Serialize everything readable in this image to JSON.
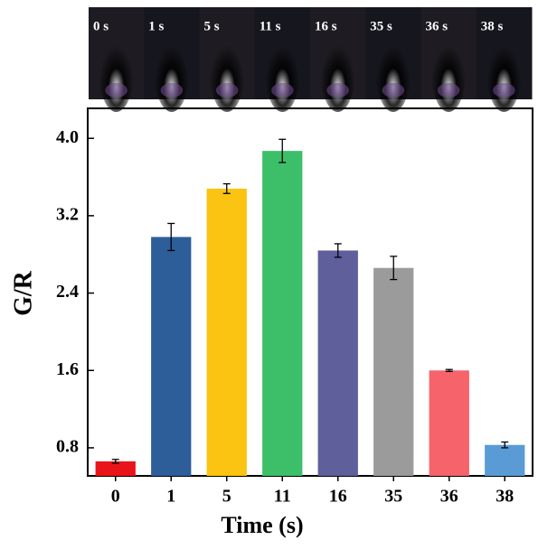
{
  "photo_strip": {
    "labels": [
      "0 s",
      "1 s",
      "5 s",
      "11 s",
      "16 s",
      "35 s",
      "36 s",
      "38 s"
    ]
  },
  "chart_data": {
    "type": "bar",
    "x_label": "Time (s)",
    "y_label": "G/R",
    "categories": [
      "0",
      "1",
      "5",
      "11",
      "16",
      "35",
      "36",
      "38"
    ],
    "values": [
      0.66,
      2.98,
      3.48,
      3.87,
      2.84,
      2.66,
      1.6,
      0.83
    ],
    "errors": [
      0.02,
      0.14,
      0.05,
      0.12,
      0.07,
      0.12,
      0.01,
      0.03
    ],
    "colors": [
      "#e8141a",
      "#2e5e9a",
      "#fbc312",
      "#3dbf6a",
      "#5f5f9c",
      "#9b9b9b",
      "#f6636a",
      "#5b9bd5"
    ],
    "ylim": [
      0.51,
      4.31
    ],
    "yticks": [
      0.8,
      1.6,
      2.4,
      3.2,
      {
        "value": 4,
        "label": "4.0"
      }
    ]
  }
}
